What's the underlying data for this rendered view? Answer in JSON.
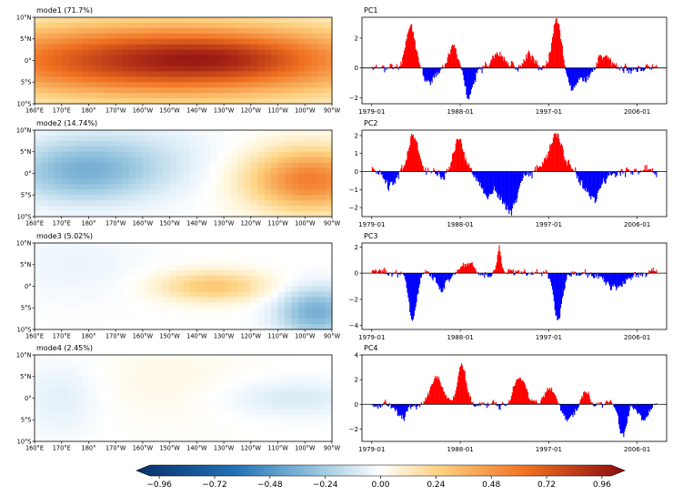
{
  "colors": {
    "positive_bar": "#ff0000",
    "negative_bar": "#0000ff",
    "axis": "#000000"
  },
  "chart_data": [
    {
      "type": "heatmap",
      "title": "mode1 (71.7%)",
      "x_tick_labels": [
        "160°E",
        "170°E",
        "180°",
        "170°W",
        "160°W",
        "150°W",
        "140°W",
        "130°W",
        "120°W",
        "110°W",
        "100°W",
        "90°W"
      ],
      "y_tick_labels": [
        "10°N",
        "5°N",
        "0°",
        "5°S",
        "10°S"
      ],
      "xlim": [
        160,
        270
      ],
      "ylim": [
        -10,
        10
      ],
      "blobs": [
        {
          "lon": 210,
          "lat": 0,
          "slon": 55,
          "slat": 6,
          "value": 0.85
        },
        {
          "lon": 228,
          "lat": 0.5,
          "slon": 20,
          "slat": 3,
          "value": 0.12
        }
      ]
    },
    {
      "type": "heatmap",
      "title": "mode2 (14.74%)",
      "x_tick_labels": [
        "160°E",
        "170°E",
        "180°",
        "170°W",
        "160°W",
        "150°W",
        "140°W",
        "130°W",
        "120°W",
        "110°W",
        "100°W",
        "90°W"
      ],
      "y_tick_labels": [
        "10°N",
        "5°N",
        "0°",
        "5°S",
        "10°S"
      ],
      "xlim": [
        160,
        270
      ],
      "ylim": [
        -10,
        10
      ],
      "blobs": [
        {
          "lon": 176,
          "lat": 0.5,
          "slon": 18,
          "slat": 5,
          "value": -0.3
        },
        {
          "lon": 200,
          "lat": 3,
          "slon": 20,
          "slat": 6,
          "value": -0.1
        },
        {
          "lon": 262,
          "lat": -1.5,
          "slon": 16,
          "slat": 5,
          "value": 0.55
        }
      ]
    },
    {
      "type": "heatmap",
      "title": "mode3 (5.02%)",
      "x_tick_labels": [
        "160°E",
        "170°E",
        "180°",
        "170°W",
        "160°W",
        "150°W",
        "140°W",
        "130°W",
        "120°W",
        "110°W",
        "100°W",
        "90°W"
      ],
      "y_tick_labels": [
        "10°N",
        "5°N",
        "0°",
        "5°S",
        "10°S"
      ],
      "xlim": [
        160,
        270
      ],
      "ylim": [
        -10,
        10
      ],
      "blobs": [
        {
          "lon": 226,
          "lat": 0,
          "slon": 14,
          "slat": 2.5,
          "value": 0.28
        },
        {
          "lon": 264,
          "lat": -6,
          "slon": 10,
          "slat": 4,
          "value": -0.35
        },
        {
          "lon": 175,
          "lat": 5,
          "slon": 18,
          "slat": 6,
          "value": -0.05
        }
      ]
    },
    {
      "type": "heatmap",
      "title": "mode4 (2.45%)",
      "x_tick_labels": [
        "160°E",
        "170°E",
        "180°",
        "170°W",
        "160°W",
        "150°W",
        "140°W",
        "130°W",
        "120°W",
        "110°W",
        "100°W",
        "90°W"
      ],
      "y_tick_labels": [
        "10°N",
        "5°N",
        "0°",
        "5°S",
        "10°S"
      ],
      "xlim": [
        160,
        270
      ],
      "ylim": [
        -10,
        10
      ],
      "blobs": [
        {
          "lon": 170,
          "lat": 0,
          "slon": 10,
          "slat": 6,
          "value": -0.08
        },
        {
          "lon": 255,
          "lat": 0,
          "slon": 18,
          "slat": 3,
          "value": -0.1
        },
        {
          "lon": 210,
          "lat": 4,
          "slon": 22,
          "slat": 7,
          "value": 0.04
        }
      ]
    },
    {
      "type": "bar",
      "title": "PC1",
      "x_tick_labels": [
        "1979-01",
        "1988-01",
        "1997-01",
        "2006-01"
      ],
      "x_tick_years": [
        1979,
        1988,
        1997,
        2006
      ],
      "xlim": [
        1978,
        2009
      ],
      "yticks": [
        -2,
        0,
        2
      ],
      "ylim": [
        -2.4,
        3.4
      ],
      "seed": 11,
      "events": [
        {
          "t": 1982.9,
          "a": 2.8,
          "w": 0.5
        },
        {
          "t": 1987.3,
          "a": 1.4,
          "w": 0.6
        },
        {
          "t": 1991.8,
          "a": 0.9,
          "w": 0.8
        },
        {
          "t": 1994.9,
          "a": 0.8,
          "w": 0.4
        },
        {
          "t": 1997.8,
          "a": 3.2,
          "w": 0.5
        },
        {
          "t": 2002.6,
          "a": 0.9,
          "w": 0.6
        },
        {
          "t": 1988.8,
          "a": -1.9,
          "w": 0.5
        },
        {
          "t": 1984.8,
          "a": -1.0,
          "w": 0.6
        },
        {
          "t": 1999.4,
          "a": -1.4,
          "w": 0.6
        },
        {
          "t": 2000.8,
          "a": -0.7,
          "w": 0.5
        }
      ]
    },
    {
      "type": "bar",
      "title": "PC2",
      "x_tick_labels": [
        "1979-01",
        "1988-01",
        "1997-01",
        "2006-01"
      ],
      "x_tick_years": [
        1979,
        1988,
        1997,
        2006
      ],
      "xlim": [
        1978,
        2009
      ],
      "yticks": [
        -2,
        -1,
        0,
        1,
        2
      ],
      "ylim": [
        -2.5,
        2.3
      ],
      "seed": 23,
      "events": [
        {
          "t": 1983.2,
          "a": 2.0,
          "w": 0.5
        },
        {
          "t": 1987.8,
          "a": 1.8,
          "w": 0.5
        },
        {
          "t": 1997.7,
          "a": 2.0,
          "w": 0.8
        },
        {
          "t": 1993.0,
          "a": -2.2,
          "w": 0.7
        },
        {
          "t": 1990.8,
          "a": -1.3,
          "w": 0.8
        },
        {
          "t": 2001.5,
          "a": -1.4,
          "w": 0.9
        },
        {
          "t": 1980.8,
          "a": -0.8,
          "w": 0.6
        }
      ]
    },
    {
      "type": "bar",
      "title": "PC3",
      "x_tick_labels": [
        "1979-01",
        "1988-01",
        "1997-01",
        "2006-01"
      ],
      "x_tick_years": [
        1979,
        1988,
        1997,
        2006
      ],
      "xlim": [
        1978,
        2009
      ],
      "yticks": [
        -4,
        -2,
        0,
        2
      ],
      "ylim": [
        -4.3,
        2.3
      ],
      "seed": 37,
      "events": [
        {
          "t": 1983.1,
          "a": -3.4,
          "w": 0.4
        },
        {
          "t": 1997.9,
          "a": -3.6,
          "w": 0.4
        },
        {
          "t": 1991.9,
          "a": 2.0,
          "w": 0.2
        },
        {
          "t": 1988.6,
          "a": 0.8,
          "w": 0.6
        },
        {
          "t": 1986.0,
          "a": -1.2,
          "w": 0.5
        },
        {
          "t": 2003.5,
          "a": -1.0,
          "w": 1.0
        }
      ]
    },
    {
      "type": "bar",
      "title": "PC4",
      "x_tick_labels": [
        "1979-01",
        "1988-01",
        "1997-01",
        "2006-01"
      ],
      "x_tick_years": [
        1979,
        1988,
        1997,
        2006
      ],
      "xlim": [
        1978,
        2009
      ],
      "yticks": [
        -2,
        0,
        2,
        4
      ],
      "ylim": [
        -3.0,
        4.0
      ],
      "seed": 53,
      "events": [
        {
          "t": 1988.1,
          "a": 3.4,
          "w": 0.4
        },
        {
          "t": 1985.5,
          "a": 2.3,
          "w": 0.6
        },
        {
          "t": 1994.0,
          "a": 2.2,
          "w": 0.6
        },
        {
          "t": 1997.0,
          "a": 1.3,
          "w": 0.5
        },
        {
          "t": 2000.7,
          "a": 1.0,
          "w": 0.4
        },
        {
          "t": 2004.5,
          "a": -2.4,
          "w": 0.4
        },
        {
          "t": 1982.0,
          "a": -1.2,
          "w": 0.5
        },
        {
          "t": 1999.0,
          "a": -1.2,
          "w": 0.5
        },
        {
          "t": 2006.5,
          "a": -1.2,
          "w": 0.5
        }
      ]
    }
  ],
  "colorbar": {
    "tick_labels": [
      "−0.96",
      "−0.72",
      "−0.48",
      "−0.24",
      "0.00",
      "0.24",
      "0.48",
      "0.72",
      "0.96"
    ],
    "vmin": -1.0,
    "vmax": 1.0
  }
}
